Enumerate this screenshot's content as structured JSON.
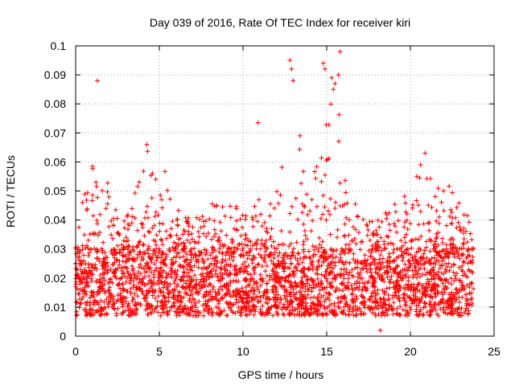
{
  "chart_data": {
    "type": "scatter",
    "title": "Day 039 of 2016, Rate Of TEC Index for receiver kiri",
    "xlabel": "GPS time / hours",
    "ylabel": "ROTI / TECUs",
    "xlim": [
      0,
      25
    ],
    "ylim": [
      0,
      0.1
    ],
    "x_ticks": [
      0,
      5,
      10,
      15,
      20,
      25
    ],
    "y_ticks": [
      0,
      0.01,
      0.02,
      0.03,
      0.04,
      0.05,
      0.06,
      0.07,
      0.08,
      0.09,
      0.1
    ],
    "y_tick_labels": [
      "0",
      "0.01",
      "0.02",
      "0.03",
      "0.04",
      "0.05",
      "0.06",
      "0.07",
      "0.08",
      "0.09",
      "0.1"
    ],
    "grid": true,
    "marker": "+",
    "color": "#ff0000",
    "series": [
      {
        "name": "ROTI",
        "x_range": [
          0,
          23.8
        ],
        "typical_band": [
          0.007,
          0.03
        ],
        "envelope": [
          [
            0,
            0.03
          ],
          [
            0.7,
            0.06
          ],
          [
            1.5,
            0.065
          ],
          [
            2.2,
            0.045
          ],
          [
            3,
            0.04
          ],
          [
            3.5,
            0.05
          ],
          [
            4.2,
            0.066
          ],
          [
            5,
            0.05
          ],
          [
            5.4,
            0.06
          ],
          [
            6,
            0.045
          ],
          [
            7,
            0.04
          ],
          [
            8,
            0.05
          ],
          [
            9,
            0.045
          ],
          [
            10,
            0.045
          ],
          [
            11,
            0.05
          ],
          [
            12,
            0.055
          ],
          [
            12.5,
            0.06
          ],
          [
            13.5,
            0.065
          ],
          [
            14.3,
            0.06
          ],
          [
            15,
            0.08
          ],
          [
            15.6,
            0.09
          ],
          [
            16,
            0.055
          ],
          [
            17,
            0.045
          ],
          [
            18,
            0.04
          ],
          [
            19,
            0.045
          ],
          [
            20,
            0.055
          ],
          [
            20.7,
            0.067
          ],
          [
            21.5,
            0.05
          ],
          [
            22.3,
            0.055
          ],
          [
            23,
            0.045
          ],
          [
            23.8,
            0.045
          ]
        ],
        "outliers": [
          [
            1.3,
            0.088
          ],
          [
            4.25,
            0.066
          ],
          [
            10.9,
            0.0735
          ],
          [
            12.8,
            0.095
          ],
          [
            12.9,
            0.092
          ],
          [
            13.0,
            0.088
          ],
          [
            14.8,
            0.094
          ],
          [
            14.9,
            0.092
          ],
          [
            15.3,
            0.089
          ],
          [
            15.5,
            0.087
          ],
          [
            15.7,
            0.09
          ],
          [
            15.8,
            0.098
          ],
          [
            15.4,
            0.085
          ],
          [
            13.4,
            0.069
          ],
          [
            18.2,
            0.002
          ]
        ]
      }
    ]
  }
}
